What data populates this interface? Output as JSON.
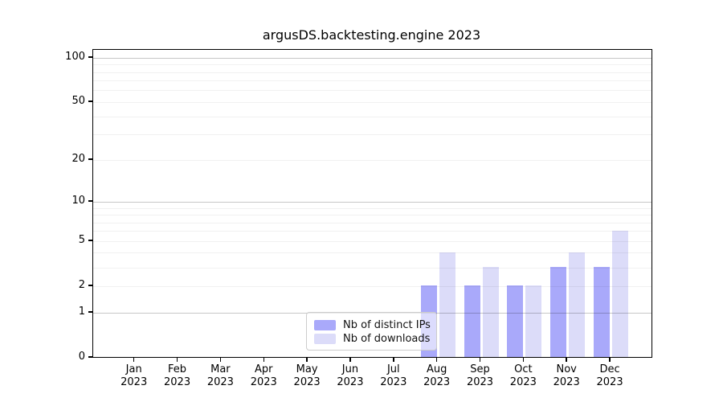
{
  "chart_data": {
    "type": "bar",
    "title": "argusDS.backtesting.engine 2023",
    "categories": [
      "Jan 2023",
      "Feb 2023",
      "Mar 2023",
      "Apr 2023",
      "May 2023",
      "Jun 2023",
      "Jul 2023",
      "Aug 2023",
      "Sep 2023",
      "Oct 2023",
      "Nov 2023",
      "Dec 2023"
    ],
    "series": [
      {
        "name": "Nb of distinct IPs",
        "color": "#a9a9fa",
        "values": [
          0,
          0,
          0,
          0,
          0,
          0,
          0,
          2,
          2,
          2,
          3,
          3
        ]
      },
      {
        "name": "Nb of downloads",
        "color": "#dcdcf9",
        "values": [
          0,
          0,
          0,
          0,
          0,
          0,
          0,
          4,
          3,
          2,
          4,
          6
        ]
      }
    ],
    "yscale": "log10(1+x)",
    "ylim": [
      0,
      113
    ],
    "ytick_labels": [
      "0",
      "1",
      "2",
      "5",
      "10",
      "20",
      "50",
      "100"
    ],
    "ytick_values": [
      0,
      1,
      2,
      5,
      10,
      20,
      50,
      100
    ],
    "major_gridlines": [
      1,
      10,
      100
    ],
    "minor_gridlines": [
      2,
      3,
      4,
      5,
      6,
      7,
      8,
      9,
      20,
      30,
      40,
      50,
      60,
      70,
      80,
      90
    ],
    "grid": "horizontal, drawn above bars",
    "legend_position": "lower center",
    "colors": {
      "distinct_ips_bar": "#a9a9fa",
      "downloads_bar": "#dcdcf9",
      "grid_major": "rgba(0,0,0,0.22)",
      "grid_minor": "rgba(0,0,0,0.055)",
      "spine": "#000000",
      "legend_border": "#cccccc"
    }
  }
}
